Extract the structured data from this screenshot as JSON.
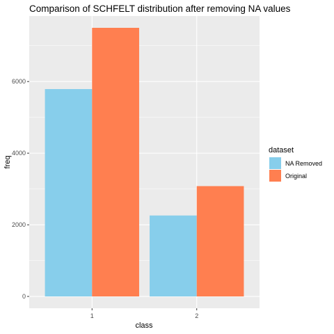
{
  "chart_data": {
    "type": "bar",
    "title": "Comparison of SCHFELT distribution after removing NA values",
    "xlabel": "class",
    "ylabel": "freq",
    "categories": [
      "1",
      "2"
    ],
    "series": [
      {
        "name": "NA Removed",
        "color": "#87CEEB",
        "values": [
          5790,
          2260
        ]
      },
      {
        "name": "Original",
        "color": "#FF7F50",
        "values": [
          7500,
          3080
        ]
      }
    ],
    "ylim": [
      -330,
      7830
    ],
    "yticks": [
      0,
      2000,
      4000,
      6000
    ],
    "ytick_labels": [
      "0",
      "2000",
      "4000",
      "6000"
    ],
    "grid": true,
    "legend": {
      "title": "dataset",
      "position": "right"
    },
    "panel_background": "#EBEBEB"
  }
}
